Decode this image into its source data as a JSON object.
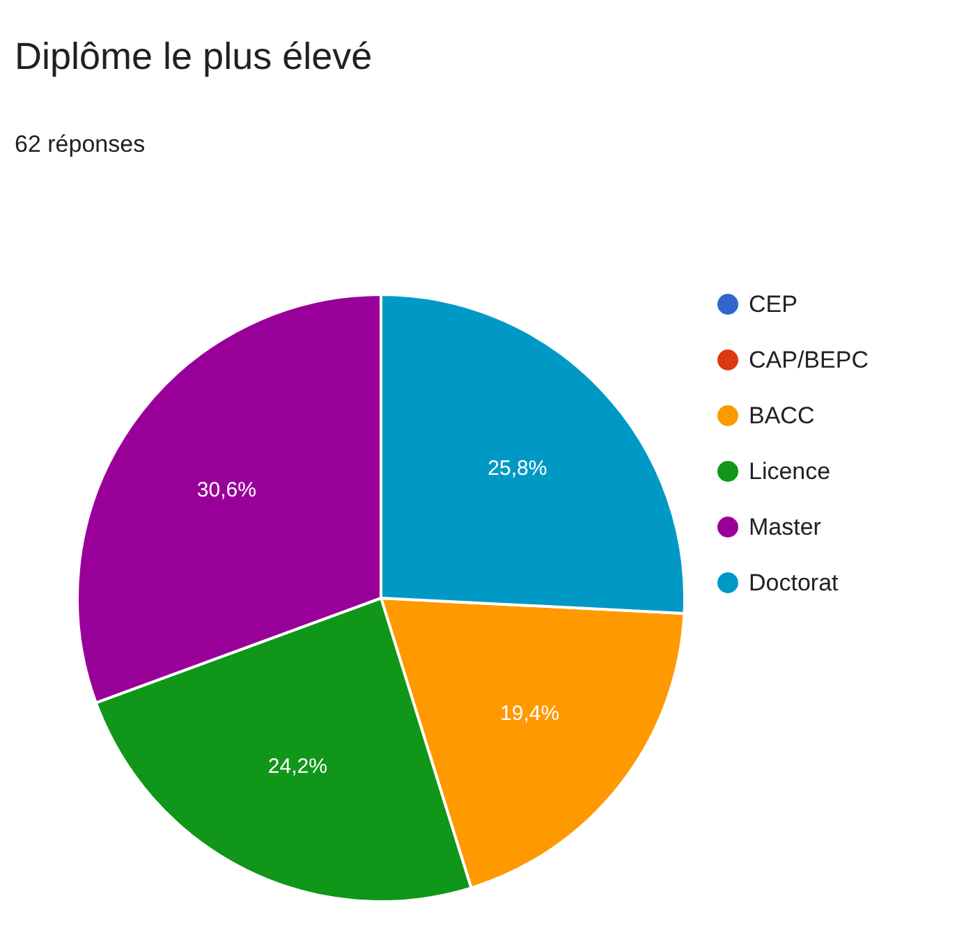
{
  "chart_data": {
    "type": "pie",
    "title": "Diplôme le plus élevé",
    "subtitle": "62 réponses",
    "categories": [
      "CEP",
      "CAP/BEPC",
      "BACC",
      "Licence",
      "Master",
      "Doctorat"
    ],
    "values": [
      0,
      0,
      19.4,
      24.2,
      30.6,
      25.8
    ],
    "colors": [
      "#3366cc",
      "#dc3912",
      "#ff9900",
      "#109618",
      "#990099",
      "#0099c6"
    ],
    "value_labels": [
      null,
      null,
      "19,4%",
      "24,2%",
      "30,6%",
      "25,8%"
    ],
    "legend": "right"
  }
}
